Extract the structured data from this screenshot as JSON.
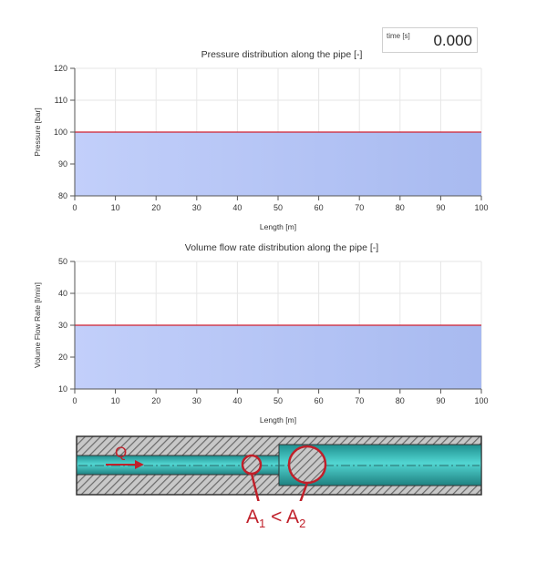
{
  "time_display": {
    "label": "time [s]",
    "value": "0.000"
  },
  "chart_data": [
    {
      "type": "area",
      "title": "Pressure distribution along the pipe [-]",
      "xlabel": "Length [m]",
      "ylabel": "Pressure [bar]",
      "xlim": [
        0,
        100
      ],
      "ylim": [
        80,
        120
      ],
      "xticks": [
        0,
        10,
        20,
        30,
        40,
        50,
        60,
        70,
        80,
        90,
        100
      ],
      "yticks": [
        80,
        90,
        100,
        110,
        120
      ],
      "grid": true,
      "x": [
        0,
        100
      ],
      "y": [
        100,
        100
      ],
      "line_color": "#d02030",
      "fill_color": "#a8baf0"
    },
    {
      "type": "area",
      "title": "Volume flow rate distribution along the pipe [-]",
      "xlabel": "Length [m]",
      "ylabel": "Volume Flow Rate [l/min]",
      "xlim": [
        0,
        100
      ],
      "ylim": [
        10,
        50
      ],
      "xticks": [
        0,
        10,
        20,
        30,
        40,
        50,
        60,
        70,
        80,
        90,
        100
      ],
      "yticks": [
        10,
        20,
        30,
        40,
        50
      ],
      "grid": true,
      "x": [
        0,
        100
      ],
      "y": [
        30,
        30
      ],
      "line_color": "#d02030",
      "fill_color": "#a8baf0"
    }
  ],
  "diagram": {
    "flow_label": "Q",
    "area_small": "A",
    "area_small_sub": "1",
    "comparison": "<",
    "area_large": "A",
    "area_large_sub": "2",
    "accent_color": "#c0202a",
    "fluid_color": "#3ec0c0"
  }
}
